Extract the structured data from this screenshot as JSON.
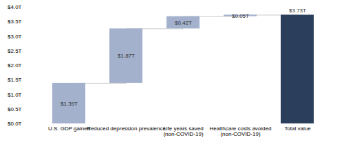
{
  "chart_data": {
    "type": "waterfall",
    "categories": [
      "U.S. GDP gained",
      "Reduced depression prevalence",
      "Life years saved\n(non-COVID-19)",
      "Healthcare costs avoided\n(non-COVID-19)",
      "Total value"
    ],
    "values": [
      1.39,
      1.87,
      0.42,
      0.05,
      3.73
    ],
    "value_labels": [
      "$1.39T",
      "$1.87T",
      "$0.42T",
      "$0.05T",
      "$3.73T"
    ],
    "colors": [
      "#a3b1cd",
      "#a3b1cd",
      "#a3b1cd",
      "#a3b1cd",
      "#2b3e5c"
    ],
    "data_labels": true,
    "ylim": [
      0,
      4
    ],
    "yticks": [
      {
        "value": 0,
        "label": "$0.0T"
      },
      {
        "value": 0.5,
        "label": "$0.5T"
      },
      {
        "value": 1,
        "label": "$1.0T"
      },
      {
        "value": 1.5,
        "label": "$1.5T"
      },
      {
        "value": 2,
        "label": "$2.0T"
      },
      {
        "value": 2.5,
        "label": "$2.5T"
      },
      {
        "value": 3,
        "label": "$3.0T"
      },
      {
        "value": 3.5,
        "label": "$3.5T"
      },
      {
        "value": 4,
        "label": "$4.0T"
      }
    ],
    "grid": false
  }
}
